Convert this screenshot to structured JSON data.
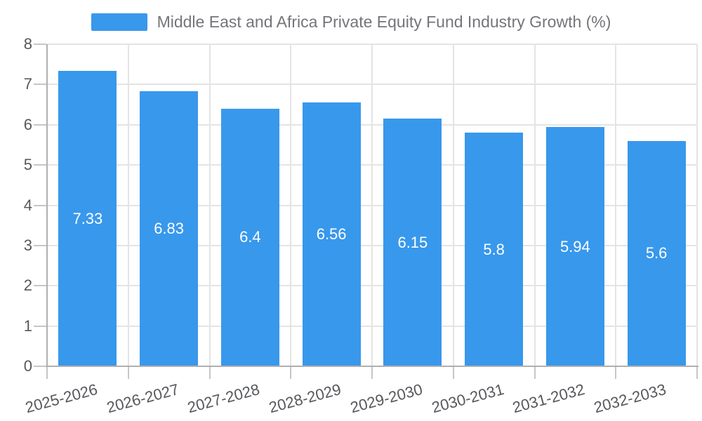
{
  "legend": {
    "label": "Middle East and Africa Private Equity Fund Industry Growth (%)"
  },
  "colors": {
    "bar": "#3898ec",
    "grid": "#e4e4e4",
    "axis_line": "#b0b0b0",
    "tick": "#c6c6c6",
    "axis_label_text": "#56585c",
    "legend_text": "#74757a",
    "value_label_text": "#ffffff",
    "background": "#ffffff"
  },
  "chart_data": {
    "type": "bar",
    "title": "Middle East and Africa Private Equity Fund Industry Growth (%)",
    "categories": [
      "2025-2026",
      "2026-2027",
      "2027-2028",
      "2028-2029",
      "2029-2030",
      "2030-2031",
      "2031-2032",
      "2032-2033"
    ],
    "values": [
      7.33,
      6.83,
      6.4,
      6.56,
      6.15,
      5.8,
      5.94,
      5.6
    ],
    "series": [
      {
        "name": "Middle East and Africa Private Equity Fund Industry Growth (%)",
        "values": [
          7.33,
          6.83,
          6.4,
          6.56,
          6.15,
          5.8,
          5.94,
          5.6
        ]
      }
    ],
    "xlabel": "",
    "ylabel": "",
    "ylim": [
      0,
      8
    ],
    "yticks": [
      0,
      1,
      2,
      3,
      4,
      5,
      6,
      7,
      8
    ],
    "grid": true,
    "legend_position": "top-center",
    "value_label_position": "inside-center",
    "x_label_rotation_deg": -15
  }
}
